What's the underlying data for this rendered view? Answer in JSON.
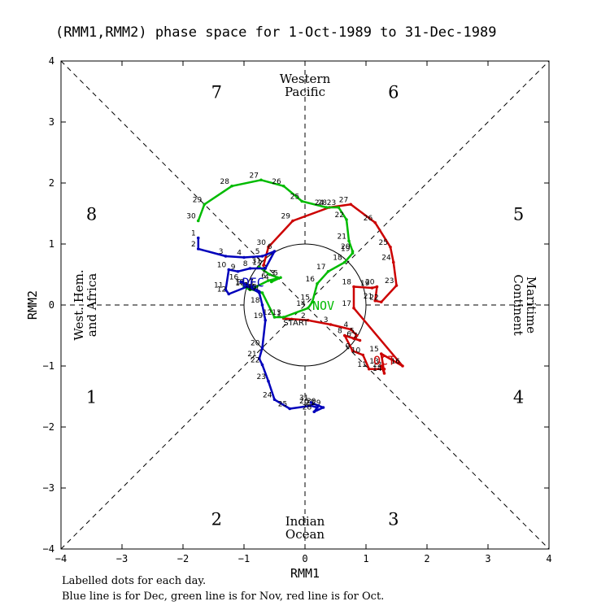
{
  "title": "(RMM1,RMM2) phase space for  1-Oct-1989 to 31-Dec-1989",
  "caption": {
    "line1": "Labelled dots for each day.",
    "line2": "Blue line is for Dec, green line is for Nov, red line is for Oct."
  },
  "colors": {
    "oct": "#cc0000",
    "nov": "#00bb00",
    "dec": "#0000bb"
  },
  "chart_data": {
    "type": "scatter",
    "title": "(RMM1,RMM2) phase space for  1-Oct-1989 to 31-Dec-1989",
    "xlabel": "RMM1",
    "ylabel": "RMM2",
    "xlim": [
      -4,
      4
    ],
    "ylim": [
      -4,
      4
    ],
    "xticks": [
      -4,
      -3,
      -2,
      -1,
      0,
      1,
      2,
      3,
      4
    ],
    "yticks": [
      -4,
      -3,
      -2,
      -1,
      0,
      1,
      2,
      3,
      4
    ],
    "unit_circle_radius": 1,
    "phases": [
      {
        "label": "1",
        "x": -3.5,
        "y": -1.5
      },
      {
        "label": "2",
        "x": -1.45,
        "y": -3.5
      },
      {
        "label": "3",
        "x": 1.45,
        "y": -3.5
      },
      {
        "label": "4",
        "x": 3.5,
        "y": -1.5
      },
      {
        "label": "5",
        "x": 3.5,
        "y": 1.5
      },
      {
        "label": "6",
        "x": 1.45,
        "y": 3.5
      },
      {
        "label": "7",
        "x": -1.45,
        "y": 3.5
      },
      {
        "label": "8",
        "x": -3.5,
        "y": 1.5
      }
    ],
    "region_labels": [
      {
        "lines": [
          "Western",
          "Pacific"
        ],
        "x": 0,
        "y": 3.6,
        "rotate": 0
      },
      {
        "lines": [
          "Indian",
          "Ocean"
        ],
        "x": 0,
        "y": -3.65,
        "rotate": 0
      },
      {
        "lines": [
          "West. Hem.",
          "and Africa"
        ],
        "x": -3.6,
        "y": 0,
        "rotate": -90
      },
      {
        "lines": [
          "Maritime",
          "Continent"
        ],
        "x": 3.6,
        "y": 0,
        "rotate": 90
      }
    ],
    "start_label": {
      "text": "START",
      "x": -0.15,
      "y": -0.28
    },
    "series": [
      {
        "name": "Oct",
        "month_label": "OCT",
        "label_x": 1.3,
        "label_y": -0.9,
        "color": "#cc0000",
        "points": [
          {
            "d": 1,
            "x": -0.35,
            "y": -0.22
          },
          {
            "d": 2,
            "x": 0.05,
            "y": -0.25
          },
          {
            "d": 3,
            "x": 0.42,
            "y": -0.32
          },
          {
            "d": 4,
            "x": 0.75,
            "y": -0.4
          },
          {
            "d": 5,
            "x": 0.85,
            "y": -0.5
          },
          {
            "d": 6,
            "x": 0.8,
            "y": -0.55
          },
          {
            "d": 7,
            "x": 0.9,
            "y": -0.58
          },
          {
            "d": 8,
            "x": 0.65,
            "y": -0.5
          },
          {
            "d": 9,
            "x": 0.78,
            "y": -0.75
          },
          {
            "d": 10,
            "x": 0.95,
            "y": -0.82
          },
          {
            "d": 11,
            "x": 1.05,
            "y": -1.05
          },
          {
            "d": 12,
            "x": 1.3,
            "y": -1.05
          },
          {
            "d": 13,
            "x": 1.25,
            "y": -1.0
          },
          {
            "d": 14,
            "x": 1.3,
            "y": -1.12
          },
          {
            "d": 15,
            "x": 1.25,
            "y": -0.8
          },
          {
            "d": 16,
            "x": 1.6,
            "y": -1.0
          },
          {
            "d": 17,
            "x": 0.8,
            "y": -0.05
          },
          {
            "d": 18,
            "x": 0.8,
            "y": 0.3
          },
          {
            "d": 19,
            "x": 1.1,
            "y": 0.28
          },
          {
            "d": 20,
            "x": 1.18,
            "y": 0.3
          },
          {
            "d": 21,
            "x": 1.15,
            "y": 0.07
          },
          {
            "d": 22,
            "x": 1.25,
            "y": 0.05
          },
          {
            "d": 23,
            "x": 1.5,
            "y": 0.32
          },
          {
            "d": 24,
            "x": 1.45,
            "y": 0.7
          },
          {
            "d": 25,
            "x": 1.4,
            "y": 0.95
          },
          {
            "d": 26,
            "x": 1.15,
            "y": 1.35
          },
          {
            "d": 27,
            "x": 0.75,
            "y": 1.65
          },
          {
            "d": 28,
            "x": 0.4,
            "y": 1.6
          },
          {
            "d": 29,
            "x": -0.2,
            "y": 1.38
          },
          {
            "d": 30,
            "x": -0.6,
            "y": 0.95
          },
          {
            "d": 31,
            "x": -0.68,
            "y": 0.65
          }
        ]
      },
      {
        "name": "Nov",
        "month_label": "NOV",
        "label_x": 0.3,
        "label_y": 0.0,
        "color": "#00bb00",
        "points": [
          {
            "d": 1,
            "x": -0.75,
            "y": 0.62
          },
          {
            "d": 2,
            "x": -0.58,
            "y": 0.5
          },
          {
            "d": 3,
            "x": -0.45,
            "y": 0.45
          },
          {
            "d": 4,
            "x": -0.55,
            "y": 0.38
          },
          {
            "d": 5,
            "x": -0.4,
            "y": 0.45
          },
          {
            "d": 6,
            "x": -0.6,
            "y": 0.4
          },
          {
            "d": 7,
            "x": -0.8,
            "y": 0.3
          },
          {
            "d": 8,
            "x": -0.9,
            "y": 0.25
          },
          {
            "d": 9,
            "x": -1.0,
            "y": 0.3
          },
          {
            "d": 10,
            "x": -0.95,
            "y": 0.28
          },
          {
            "d": 11,
            "x": -0.7,
            "y": 0.2
          },
          {
            "d": 12,
            "x": -0.5,
            "y": -0.2
          },
          {
            "d": 13,
            "x": -0.35,
            "y": -0.2
          },
          {
            "d": 14,
            "x": 0.05,
            "y": -0.05
          },
          {
            "d": 15,
            "x": 0.12,
            "y": 0.05
          },
          {
            "d": 16,
            "x": 0.2,
            "y": 0.35
          },
          {
            "d": 17,
            "x": 0.38,
            "y": 0.55
          },
          {
            "d": 18,
            "x": 0.65,
            "y": 0.7
          },
          {
            "d": 19,
            "x": 0.78,
            "y": 0.85
          },
          {
            "d": 20,
            "x": 0.78,
            "y": 0.88
          },
          {
            "d": 21,
            "x": 0.72,
            "y": 1.05
          },
          {
            "d": 22,
            "x": 0.68,
            "y": 1.4
          },
          {
            "d": 23,
            "x": 0.55,
            "y": 1.6
          },
          {
            "d": 24,
            "x": 0.35,
            "y": 1.6
          },
          {
            "d": 25,
            "x": -0.05,
            "y": 1.7
          },
          {
            "d": 26,
            "x": -0.35,
            "y": 1.95
          },
          {
            "d": 27,
            "x": -0.72,
            "y": 2.05
          },
          {
            "d": 28,
            "x": -1.2,
            "y": 1.95
          },
          {
            "d": 29,
            "x": -1.65,
            "y": 1.65
          },
          {
            "d": 30,
            "x": -1.75,
            "y": 1.38
          }
        ]
      },
      {
        "name": "Dec",
        "month_label": "DEC",
        "label_x": -0.85,
        "label_y": 0.38,
        "color": "#0000bb",
        "points": [
          {
            "d": 1,
            "x": -1.75,
            "y": 1.1
          },
          {
            "d": 2,
            "x": -1.75,
            "y": 0.92
          },
          {
            "d": 3,
            "x": -1.3,
            "y": 0.8
          },
          {
            "d": 4,
            "x": -1.0,
            "y": 0.78
          },
          {
            "d": 5,
            "x": -0.7,
            "y": 0.8
          },
          {
            "d": 6,
            "x": -0.5,
            "y": 0.88
          },
          {
            "d": 7,
            "x": -0.65,
            "y": 0.6
          },
          {
            "d": 8,
            "x": -0.9,
            "y": 0.6
          },
          {
            "d": 9,
            "x": -1.1,
            "y": 0.55
          },
          {
            "d": 10,
            "x": -1.25,
            "y": 0.58
          },
          {
            "d": 11,
            "x": -1.3,
            "y": 0.25
          },
          {
            "d": 12,
            "x": -1.25,
            "y": 0.18
          },
          {
            "d": 13,
            "x": -0.95,
            "y": 0.3
          },
          {
            "d": 14,
            "x": -0.8,
            "y": 0.25
          },
          {
            "d": 15,
            "x": -0.75,
            "y": 0.22
          },
          {
            "d": 16,
            "x": -1.05,
            "y": 0.38
          },
          {
            "d": 17,
            "x": -0.75,
            "y": 0.2
          },
          {
            "d": 18,
            "x": -0.7,
            "y": 0.0
          },
          {
            "d": 19,
            "x": -0.65,
            "y": -0.25
          },
          {
            "d": 20,
            "x": -0.7,
            "y": -0.7
          },
          {
            "d": 21,
            "x": -0.75,
            "y": -0.88
          },
          {
            "d": 22,
            "x": -0.7,
            "y": -0.98
          },
          {
            "d": 23,
            "x": -0.6,
            "y": -1.25
          },
          {
            "d": 24,
            "x": -0.5,
            "y": -1.55
          },
          {
            "d": 25,
            "x": -0.25,
            "y": -1.7
          },
          {
            "d": 26,
            "x": 0.1,
            "y": -1.65
          },
          {
            "d": 27,
            "x": 0.2,
            "y": -1.68
          },
          {
            "d": 28,
            "x": 0.15,
            "y": -1.75
          },
          {
            "d": 29,
            "x": 0.3,
            "y": -1.68
          },
          {
            "d": 30,
            "x": 0.22,
            "y": -1.65
          },
          {
            "d": 31,
            "x": 0.1,
            "y": -1.6
          }
        ]
      }
    ]
  }
}
